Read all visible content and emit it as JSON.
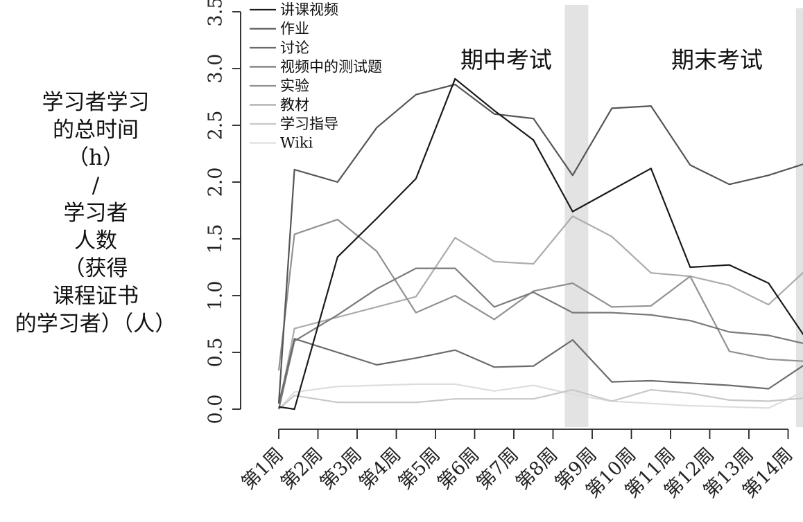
{
  "chart_data": {
    "type": "line",
    "ylabel_lines": [
      "学习者学习",
      "的总时间",
      "（h）",
      "/",
      "学习者",
      "人数",
      "（获得",
      "课程证书",
      "的学习者）（人）"
    ],
    "xlabel": "",
    "categories": [
      "第1周",
      "第2周",
      "第3周",
      "第4周",
      "第5周",
      "第6周",
      "第7周",
      "第8周",
      "第9周",
      "第10周",
      "第11周",
      "第12周",
      "第13周",
      "第14周"
    ],
    "ylim": [
      0,
      3.5
    ],
    "yticks": [
      "0.0",
      "0.5",
      "1.0",
      "1.5",
      "2.0",
      "2.5",
      "3.0",
      "3.5"
    ],
    "ytick_values": [
      0,
      0.5,
      1.0,
      1.5,
      2.0,
      2.5,
      3.0,
      3.5
    ],
    "shaded_regions": [
      {
        "label": "期中考试",
        "from": 8.3,
        "to": 8.9
      },
      {
        "label": "期末考试",
        "from": 14.2,
        "to": 14.8
      }
    ],
    "legend_position": "top-left",
    "x": [
      1,
      1.4,
      2.5,
      3.5,
      4.5,
      5.5,
      6.5,
      7.5,
      8.5,
      9.5,
      10.5,
      11.5,
      12.5,
      13.5,
      14.5
    ],
    "series": [
      {
        "name": "讲课视频",
        "color": "#1a1a1a",
        "values": [
          0.02,
          0.0,
          1.34,
          1.68,
          2.03,
          2.91,
          2.63,
          2.37,
          1.74,
          1.93,
          2.12,
          1.25,
          1.27,
          1.11,
          0.6
        ]
      },
      {
        "name": "作业",
        "color": "#555555",
        "values": [
          0.05,
          2.11,
          2.0,
          2.48,
          2.77,
          2.86,
          2.6,
          2.56,
          2.06,
          2.65,
          2.67,
          2.15,
          1.98,
          2.06,
          2.17
        ]
      },
      {
        "name": "讨论",
        "color": "#6b6b6b",
        "values": [
          0.05,
          0.62,
          0.5,
          0.39,
          0.45,
          0.52,
          0.37,
          0.38,
          0.61,
          0.24,
          0.25,
          0.23,
          0.21,
          0.18,
          0.41
        ]
      },
      {
        "name": "视频中的测试题",
        "color": "#7a7a7a",
        "values": [
          0.0,
          0.6,
          0.83,
          1.06,
          1.24,
          1.24,
          0.9,
          1.03,
          0.85,
          0.85,
          0.83,
          0.78,
          0.68,
          0.65,
          0.57
        ]
      },
      {
        "name": "实验",
        "color": "#919191",
        "values": [
          0.34,
          1.54,
          1.67,
          1.39,
          0.85,
          1.0,
          0.79,
          1.04,
          1.11,
          0.9,
          0.91,
          1.17,
          0.51,
          0.44,
          0.42
        ]
      },
      {
        "name": "教材",
        "color": "#ababab",
        "values": [
          0.0,
          0.71,
          0.81,
          0.9,
          0.99,
          1.51,
          1.3,
          1.28,
          1.7,
          1.52,
          1.2,
          1.17,
          1.09,
          0.92,
          1.24
        ]
      },
      {
        "name": "学习指导",
        "color": "#c8c8c8",
        "values": [
          0.0,
          0.12,
          0.06,
          0.06,
          0.06,
          0.09,
          0.09,
          0.09,
          0.17,
          0.07,
          0.17,
          0.14,
          0.08,
          0.07,
          0.1
        ]
      },
      {
        "name": "Wiki",
        "color": "#dddddd",
        "values": [
          0.0,
          0.15,
          0.2,
          0.21,
          0.22,
          0.22,
          0.16,
          0.21,
          0.13,
          0.07,
          0.05,
          0.03,
          0.02,
          0.01,
          0.17
        ]
      }
    ]
  }
}
